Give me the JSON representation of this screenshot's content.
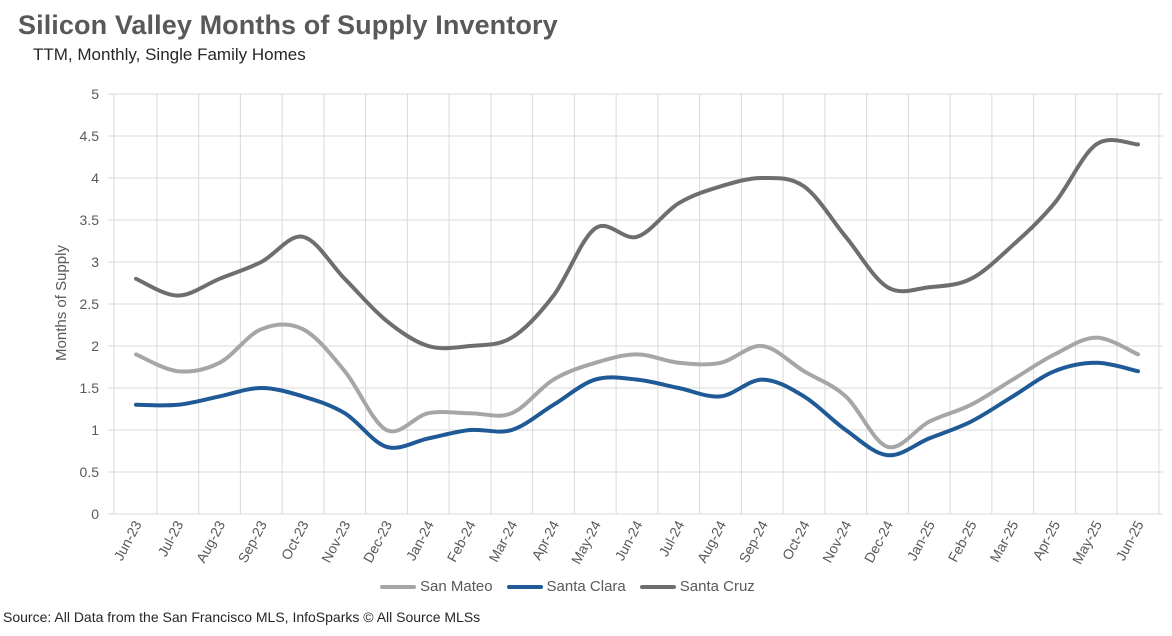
{
  "title": "Silicon Valley Months of Supply Inventory",
  "subtitle": "TTM, Monthly, Single Family Homes",
  "source": "Source: All Data from the San Francisco MLS, InfoSparks © All Source MLSs",
  "chart_data": {
    "type": "line",
    "title": "Silicon Valley Months of Supply Inventory",
    "subtitle": "TTM, Monthly, Single Family Homes",
    "xlabel": "",
    "ylabel": "Months of Supply",
    "ylim": [
      0,
      5
    ],
    "yticks": [
      "0",
      "0.5",
      "1",
      "1.5",
      "2",
      "2.5",
      "3",
      "3.5",
      "4",
      "4.5",
      "5"
    ],
    "grid": true,
    "legend_position": "bottom",
    "smooth": true,
    "categories": [
      "Jun-23",
      "Jul-23",
      "Aug-23",
      "Sep-23",
      "Oct-23",
      "Nov-23",
      "Dec-23",
      "Jan-24",
      "Feb-24",
      "Mar-24",
      "Apr-24",
      "May-24",
      "Jun-24",
      "Jul-24",
      "Aug-24",
      "Sep-24",
      "Oct-24",
      "Nov-24",
      "Dec-24",
      "Jan-25",
      "Feb-25",
      "Mar-25",
      "Apr-25",
      "May-25",
      "Jun-25"
    ],
    "series": [
      {
        "name": "San Mateo",
        "color": "#a6a6a6",
        "values": [
          1.9,
          1.7,
          1.8,
          2.2,
          2.2,
          1.7,
          1.0,
          1.2,
          1.2,
          1.2,
          1.6,
          1.8,
          1.9,
          1.8,
          1.8,
          2.0,
          1.7,
          1.4,
          0.8,
          1.1,
          1.3,
          1.6,
          1.9,
          2.1,
          1.9
        ]
      },
      {
        "name": "Santa Clara",
        "color": "#1f5a96",
        "values": [
          1.3,
          1.3,
          1.4,
          1.5,
          1.4,
          1.2,
          0.8,
          0.9,
          1.0,
          1.0,
          1.3,
          1.6,
          1.6,
          1.5,
          1.4,
          1.6,
          1.4,
          1.0,
          0.7,
          0.9,
          1.1,
          1.4,
          1.7,
          1.8,
          1.7
        ]
      },
      {
        "name": "Santa Cruz",
        "color": "#6e6e6e",
        "values": [
          2.8,
          2.6,
          2.8,
          3.0,
          3.3,
          2.8,
          2.3,
          2.0,
          2.0,
          2.1,
          2.6,
          3.4,
          3.3,
          3.7,
          3.9,
          4.0,
          3.9,
          3.3,
          2.7,
          2.7,
          2.8,
          3.2,
          3.7,
          4.4,
          4.4
        ]
      }
    ]
  }
}
